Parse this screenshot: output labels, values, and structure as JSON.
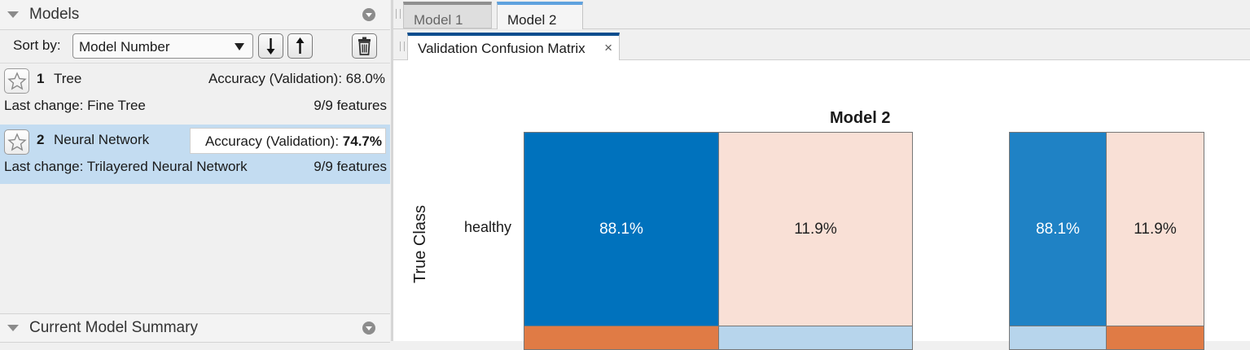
{
  "left_panel": {
    "models_title": "Models",
    "sort_label": "Sort by:",
    "sort_value": "Model Number",
    "models": [
      {
        "number": "1",
        "name": "Tree",
        "accuracy_label": "Accuracy (Validation):",
        "accuracy": "68.0%",
        "last_change": "Last change: Fine Tree",
        "features": "9/9 features",
        "selected": false
      },
      {
        "number": "2",
        "name": "Neural Network",
        "accuracy_label": "Accuracy (Validation):",
        "accuracy": "74.7%",
        "last_change": "Last change: Trilayered Neural Network",
        "features": "9/9 features",
        "selected": true
      }
    ],
    "summary_title": "Current Model Summary"
  },
  "doc_tabs": [
    "Model 1",
    "Model 2"
  ],
  "active_doc_tab": "Model 2",
  "plot_tab": {
    "label": "Validation Confusion Matrix",
    "close": "×"
  },
  "plot": {
    "title": "Model 2",
    "row_label": "healthy",
    "y_axis_label": "True Class",
    "main_cells": [
      "88.1%",
      "11.9%"
    ],
    "side_cells": [
      "88.1%",
      "11.9%"
    ]
  },
  "colors": {
    "selected_row": "#c3dcf1",
    "main_hit": "#0072bd",
    "side_hit": "#1f82c5",
    "miss_light": "#f9e0d6",
    "miss_dark": "#e07b45",
    "light_blue": "#b7d5ec",
    "tab_accent": "#0b4d8e"
  },
  "icons": [
    "collapse-triangle-icon",
    "panel-menu-icon",
    "sort-descending-icon",
    "sort-ascending-icon",
    "trash-icon",
    "star-icon",
    "close-icon"
  ]
}
